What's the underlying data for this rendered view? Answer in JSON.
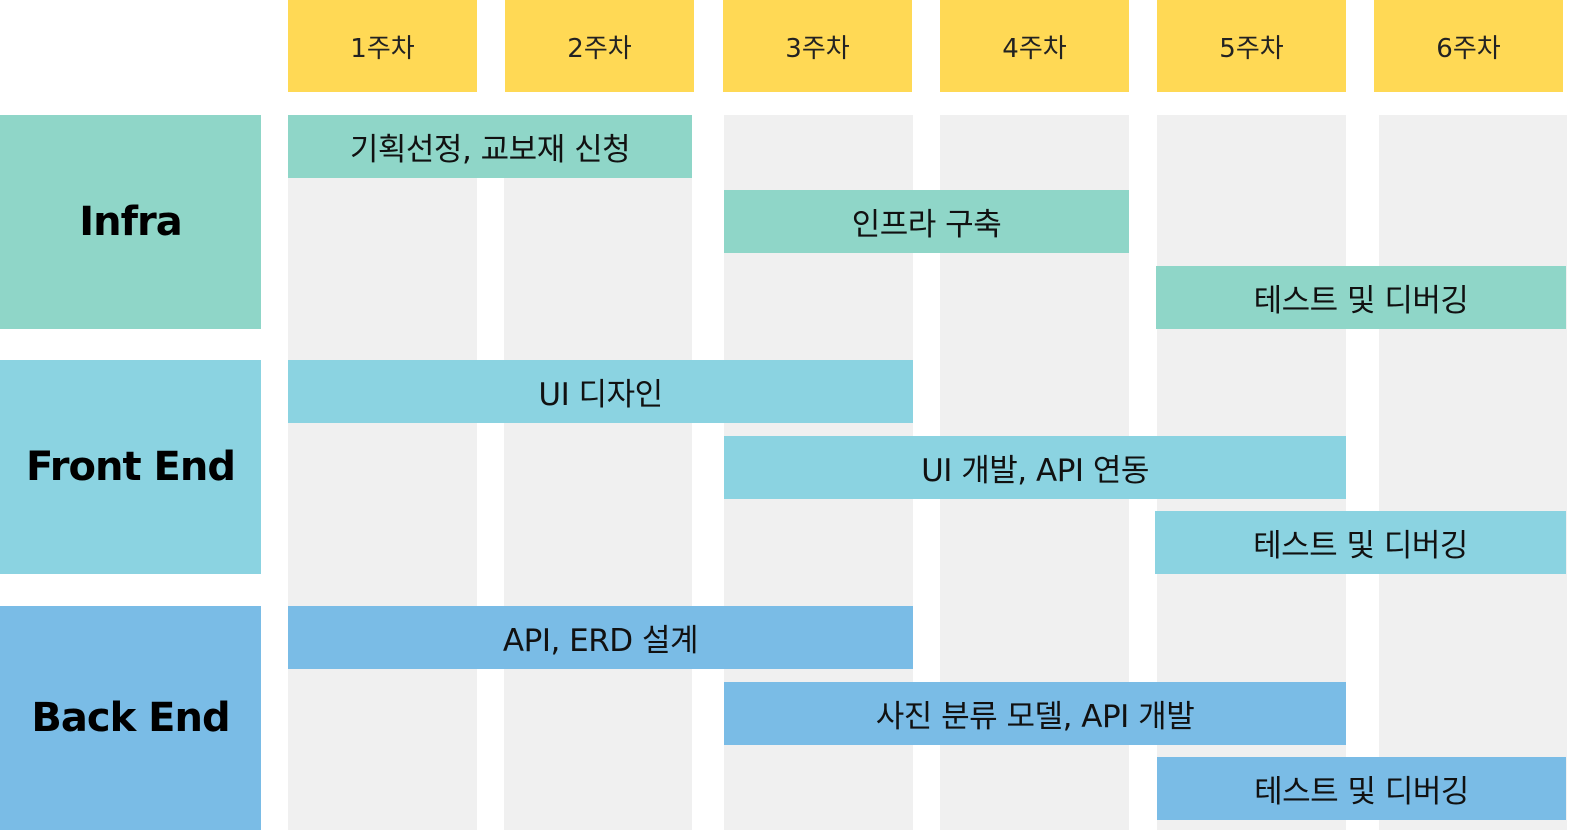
{
  "weeks": [
    "1주차",
    "2주차",
    "3주차",
    "4주차",
    "5주차",
    "6주차"
  ],
  "rows": {
    "infra": "Infra",
    "frontend": "Front End",
    "backend": "Back End"
  },
  "tasks": {
    "infra_planning": "기획선정, 교보재 신청",
    "infra_build": "인프라 구축",
    "infra_test": "테스트 및 디버깅",
    "fe_design": "UI 디자인",
    "fe_dev": "UI 개발, API 연동",
    "fe_test": "테스트 및 디버깅",
    "be_design": "API, ERD 설계",
    "be_dev": "사진 분류 모델,  API 개발",
    "be_test": "테스트 및 디버깅"
  },
  "colors": {
    "week_header": "#FFD955",
    "infra": "#8FD6C8",
    "frontend": "#8BD3E1",
    "backend": "#7ABCE6",
    "week_column": "#F0F0F0"
  }
}
